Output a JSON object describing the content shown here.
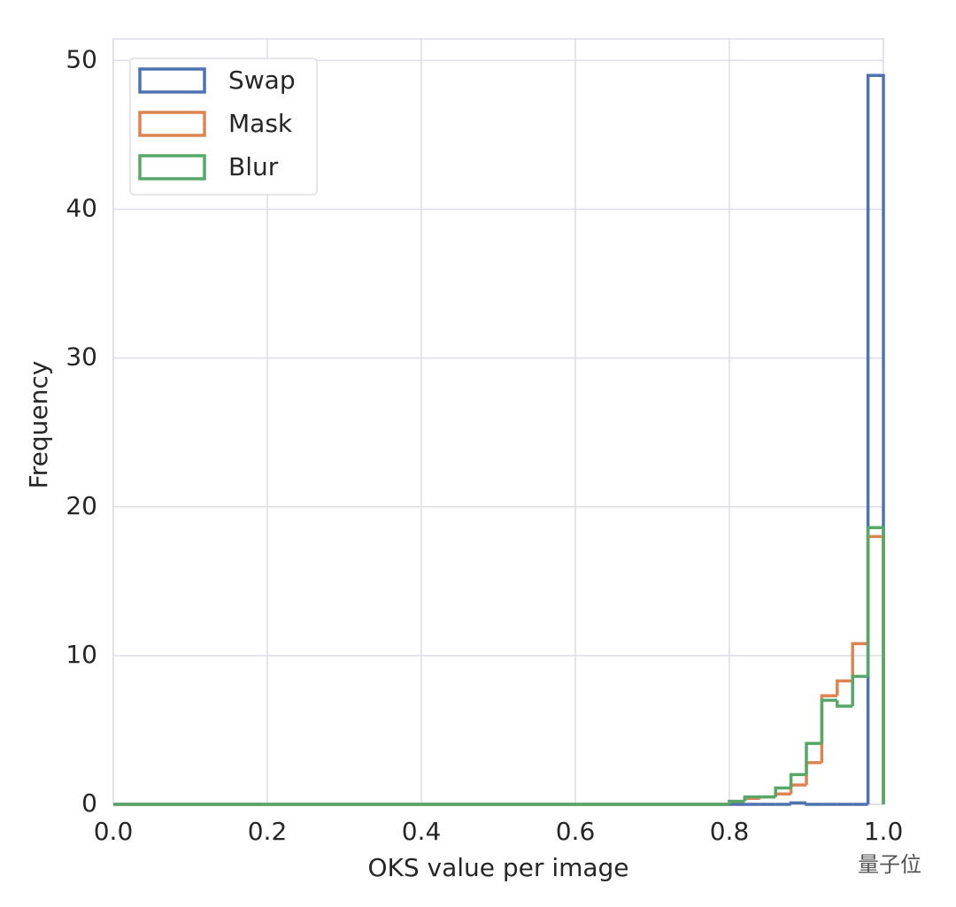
{
  "chart_data": {
    "type": "histogram",
    "histtype": "step",
    "xlabel": "OKS value per image",
    "ylabel": "Frequency",
    "bins": [
      0.0,
      0.02,
      0.04,
      0.06,
      0.08,
      0.1,
      0.12,
      0.14,
      0.16,
      0.18,
      0.2,
      0.22,
      0.24,
      0.26,
      0.28,
      0.3,
      0.32,
      0.34,
      0.36,
      0.38,
      0.4,
      0.42,
      0.44,
      0.46,
      0.48,
      0.5,
      0.52,
      0.54,
      0.56,
      0.58,
      0.6,
      0.62,
      0.64,
      0.66,
      0.68,
      0.7,
      0.72,
      0.74,
      0.76,
      0.78,
      0.8,
      0.82,
      0.84,
      0.86,
      0.88,
      0.9,
      0.92,
      0.94,
      0.96,
      0.98,
      1.0
    ],
    "series": [
      {
        "name": "Swap",
        "color": "#4c72b0",
        "values": [
          0,
          0,
          0,
          0,
          0,
          0,
          0,
          0,
          0,
          0,
          0,
          0,
          0,
          0,
          0,
          0,
          0,
          0,
          0,
          0,
          0,
          0,
          0,
          0,
          0,
          0,
          0,
          0,
          0,
          0,
          0,
          0,
          0,
          0,
          0,
          0,
          0,
          0,
          0,
          0,
          0,
          0,
          0,
          0,
          0.1,
          0,
          0,
          0,
          0,
          49
        ]
      },
      {
        "name": "Mask",
        "color": "#dd8452",
        "values": [
          0,
          0,
          0,
          0,
          0,
          0,
          0,
          0,
          0,
          0,
          0,
          0,
          0,
          0,
          0,
          0,
          0,
          0,
          0,
          0,
          0,
          0,
          0,
          0,
          0,
          0,
          0,
          0,
          0,
          0,
          0,
          0,
          0,
          0,
          0,
          0,
          0,
          0,
          0,
          0,
          0.2,
          0.4,
          0.5,
          0.7,
          1.3,
          2.8,
          7.3,
          8.3,
          10.8,
          18
        ]
      },
      {
        "name": "Blur",
        "color": "#55a868",
        "values": [
          0,
          0,
          0,
          0,
          0,
          0,
          0,
          0,
          0,
          0,
          0,
          0,
          0,
          0,
          0,
          0,
          0,
          0,
          0,
          0,
          0,
          0,
          0,
          0,
          0,
          0,
          0,
          0,
          0,
          0,
          0,
          0,
          0,
          0,
          0,
          0,
          0,
          0,
          0,
          0,
          0.2,
          0.5,
          0.5,
          1.1,
          2.0,
          4.1,
          7.0,
          6.6,
          8.6,
          18.6
        ]
      }
    ],
    "xlim": [
      0,
      1
    ],
    "ylim": [
      0,
      51.45
    ],
    "xticks": [
      {
        "value": 0,
        "label": "0.0"
      },
      0.2,
      0.4,
      0.6,
      0.8,
      {
        "value": 1,
        "label": "1.0"
      }
    ],
    "yticks": [
      0,
      10,
      20,
      30,
      40,
      50
    ],
    "grid": true,
    "legend": "upper left"
  },
  "watermark": "量子位"
}
